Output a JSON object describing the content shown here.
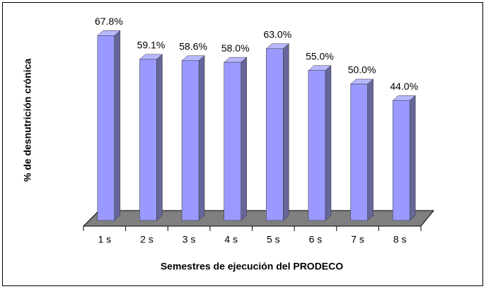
{
  "chart_data": {
    "type": "bar",
    "x_label": "Semestres de ejecución del PRODECO",
    "y_label": "% de desnutrición crónica",
    "categories": [
      "1 s",
      "2 s",
      "3 s",
      "4 s",
      "5 s",
      "6 s",
      "7 s",
      "8 s"
    ],
    "values": [
      67.8,
      59.1,
      58.6,
      58.0,
      63.0,
      55.0,
      50.0,
      44.0
    ],
    "value_labels": [
      "67.8%",
      "59.1%",
      "58.6%",
      "58.0%",
      "63.0%",
      "55.0%",
      "50.0%",
      "44.0%"
    ],
    "color": "#9999ff"
  }
}
